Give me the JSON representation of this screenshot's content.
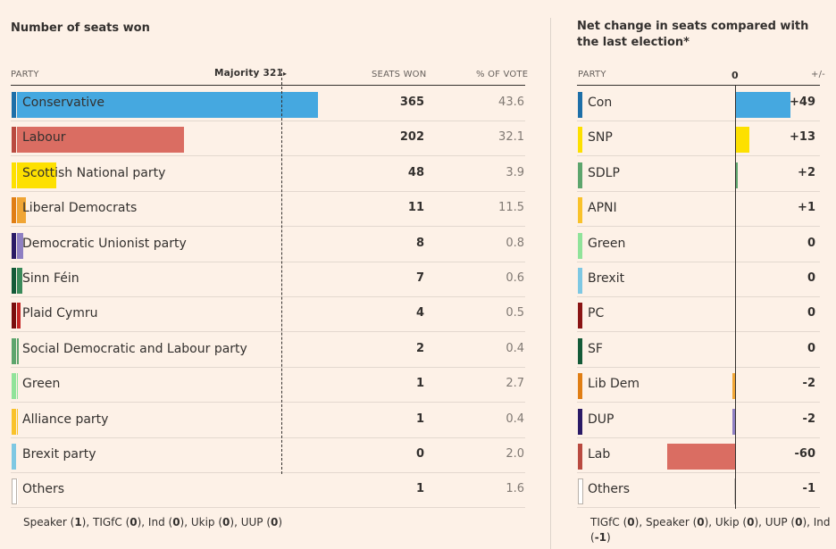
{
  "left": {
    "title": "Number of seats won",
    "headers": {
      "party": "PARTY",
      "majority": "Majority 321",
      "seats": "SEATS WON",
      "pct": "% OF VOTE"
    },
    "majority_marker": "▸",
    "footnote_parts": [
      {
        "t": "Speaker (",
        "b": false
      },
      {
        "t": "1",
        "b": true
      },
      {
        "t": "), TIGfC (",
        "b": false
      },
      {
        "t": "0",
        "b": true
      },
      {
        "t": "), Ind (",
        "b": false
      },
      {
        "t": "0",
        "b": true
      },
      {
        "t": "), Ukip (",
        "b": false
      },
      {
        "t": "0",
        "b": true
      },
      {
        "t": "), UUP (",
        "b": false
      },
      {
        "t": "0",
        "b": true
      },
      {
        "t": ")",
        "b": false
      }
    ]
  },
  "right": {
    "title": "Net change in seats compared with the last election*",
    "headers": {
      "party": "PARTY",
      "zero": "0",
      "change": "+/-"
    },
    "footnote_parts": [
      {
        "t": "TIGfC (",
        "b": false
      },
      {
        "t": "0",
        "b": true
      },
      {
        "t": "), Speaker (",
        "b": false
      },
      {
        "t": "0",
        "b": true
      },
      {
        "t": "), Ukip (",
        "b": false
      },
      {
        "t": "0",
        "b": true
      },
      {
        "t": "), UUP (",
        "b": false
      },
      {
        "t": "0",
        "b": true
      },
      {
        "t": "), Ind",
        "b": false
      },
      {
        "t": "\n",
        "b": false
      },
      {
        "t": "(",
        "b": false
      },
      {
        "t": "-1",
        "b": true
      },
      {
        "t": ")",
        "b": false
      }
    ]
  },
  "chart_data": [
    {
      "type": "bar",
      "title": "Number of seats won",
      "orientation": "horizontal",
      "majority_threshold": 321,
      "xlim": [
        0,
        365
      ],
      "rows": [
        {
          "party": "Conservative",
          "seats": 365,
          "pct": "43.6",
          "color": "#45a8e0",
          "edge": "#1e6fa8"
        },
        {
          "party": "Labour",
          "seats": 202,
          "pct": "32.1",
          "color": "#da6d62",
          "edge": "#b94a40"
        },
        {
          "party": "Scottish National party",
          "seats": 48,
          "pct": "3.9",
          "color": "#fde000",
          "edge": "#fde000"
        },
        {
          "party": "Liberal Democrats",
          "seats": 11,
          "pct": "11.5",
          "color": "#f0a535",
          "edge": "#e07e14"
        },
        {
          "party": "Democratic Unionist party",
          "seats": 8,
          "pct": "0.8",
          "color": "#8e7fc2",
          "edge": "#2a1a66"
        },
        {
          "party": "Sinn Féin",
          "seats": 7,
          "pct": "0.6",
          "color": "#3a8a5a",
          "edge": "#145a38"
        },
        {
          "party": "Plaid Cymru",
          "seats": 4,
          "pct": "0.5",
          "color": "#c42424",
          "edge": "#7a0d0d"
        },
        {
          "party": "Social Democratic and Labour party",
          "seats": 2,
          "pct": "0.4",
          "color": "#5da56d",
          "edge": "#5da56d"
        },
        {
          "party": "Green",
          "seats": 1,
          "pct": "2.7",
          "color": "#90e39a",
          "edge": "#90e39a"
        },
        {
          "party": "Alliance party",
          "seats": 1,
          "pct": "0.4",
          "color": "#f9c22b",
          "edge": "#f9c22b"
        },
        {
          "party": "Brexit party",
          "seats": 0,
          "pct": "2.0",
          "color": "#7ec8e3",
          "edge": "#7ec8e3"
        },
        {
          "party": "Others",
          "seats": 1,
          "pct": "1.6",
          "color": "#ffffff",
          "edge": "#c8c0b8"
        }
      ]
    },
    {
      "type": "bar",
      "title": "Net change in seats compared with the last election*",
      "orientation": "horizontal",
      "xlim": [
        -60,
        49
      ],
      "rows": [
        {
          "party": "Con",
          "change": 49,
          "label": "+49",
          "color": "#45a8e0",
          "edge": "#1e6fa8"
        },
        {
          "party": "SNP",
          "change": 13,
          "label": "+13",
          "color": "#fde000",
          "edge": "#fde000"
        },
        {
          "party": "SDLP",
          "change": 2,
          "label": "+2",
          "color": "#5da56d",
          "edge": "#5da56d"
        },
        {
          "party": "APNI",
          "change": 1,
          "label": "+1",
          "color": "#f9c22b",
          "edge": "#f9c22b"
        },
        {
          "party": "Green",
          "change": 0,
          "label": "0",
          "color": "#90e39a",
          "edge": "#90e39a"
        },
        {
          "party": "Brexit",
          "change": 0,
          "label": "0",
          "color": "#7ec8e3",
          "edge": "#7ec8e3"
        },
        {
          "party": "PC",
          "change": 0,
          "label": "0",
          "color": "#8a1414",
          "edge": "#8a1414"
        },
        {
          "party": "SF",
          "change": 0,
          "label": "0",
          "color": "#145a38",
          "edge": "#145a38"
        },
        {
          "party": "Lib Dem",
          "change": -2,
          "label": "-2",
          "color": "#f0a535",
          "edge": "#e07e14"
        },
        {
          "party": "DUP",
          "change": -2,
          "label": "-2",
          "color": "#8e7fc2",
          "edge": "#2a1a66"
        },
        {
          "party": "Lab",
          "change": -60,
          "label": "-60",
          "color": "#da6d62",
          "edge": "#b94a40"
        },
        {
          "party": "Others",
          "change": -1,
          "label": "-1",
          "color": "#c8c0b8",
          "edge": "#c8c0b8"
        }
      ]
    }
  ]
}
